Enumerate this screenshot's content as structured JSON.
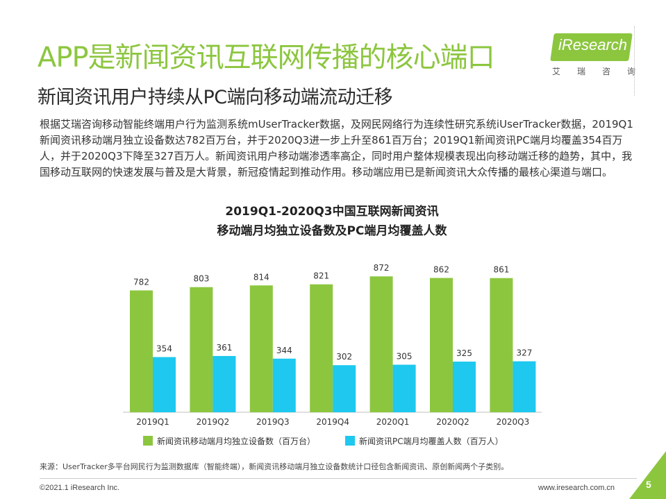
{
  "slide": {
    "title": "APP是新闻资讯互联网传播的核心端口",
    "subtitle": "新闻资讯用户持续从PC端向移动端流动迁移",
    "paragraph": "根据艾瑞咨询移动智能终端用户行为监测系统mUserTracker数据，及网民网络行为连续性研究系统iUserTracker数据，2019Q1新闻资讯移动端月独立设备数达782百万台，并于2020Q3进一步上升至861百万台；2019Q1新闻资讯PC端月均覆盖354百万人，并于2020Q3下降至327百万人。新闻资讯用户移动端渗透率高企，同时用户整体规模表现出向移动端迁移的趋势，其中，我国移动互联网的快速发展与普及是大背景，新冠疫情起到推动作用。移动端应用已是新闻资讯大众传播的最核心渠道与端口。",
    "source": "来源：UserTracker多平台网民行为监测数据库（智能终端），新闻资讯移动端月独立设备数统计口径包含新闻资讯、原创新闻两个子类别。",
    "footer_left": "©2021.1 iResearch Inc.",
    "footer_right": "www.iresearch.com.cn",
    "page_number": "5"
  },
  "logo": {
    "text": "iResearch",
    "cn_chars": [
      "艾",
      "瑞",
      "咨",
      "询"
    ]
  },
  "colors": {
    "accent_green": "#8cc63f",
    "bar_cyan": "#1ec8ef",
    "page_corner": "#8cc63f"
  },
  "chart_data": {
    "type": "bar",
    "title_line1": "2019Q1-2020Q3中国互联网新闻资讯",
    "title_line2": "移动端月均独立设备数及PC端月均覆盖人数",
    "categories": [
      "2019Q1",
      "2019Q2",
      "2019Q3",
      "2019Q4",
      "2020Q1",
      "2020Q2",
      "2020Q3"
    ],
    "series": [
      {
        "name": "新闻资讯移动端月均独立设备数（百万台）",
        "values": [
          782,
          803,
          814,
          821,
          872,
          862,
          861
        ],
        "color": "#8cc63f"
      },
      {
        "name": "新闻资讯PC端月均覆盖人数（百万人）",
        "values": [
          354,
          361,
          344,
          302,
          305,
          325,
          327
        ],
        "color": "#1ec8ef"
      }
    ],
    "ylim": [
      0,
      1000
    ],
    "grid": false,
    "legend_position": "bottom"
  }
}
